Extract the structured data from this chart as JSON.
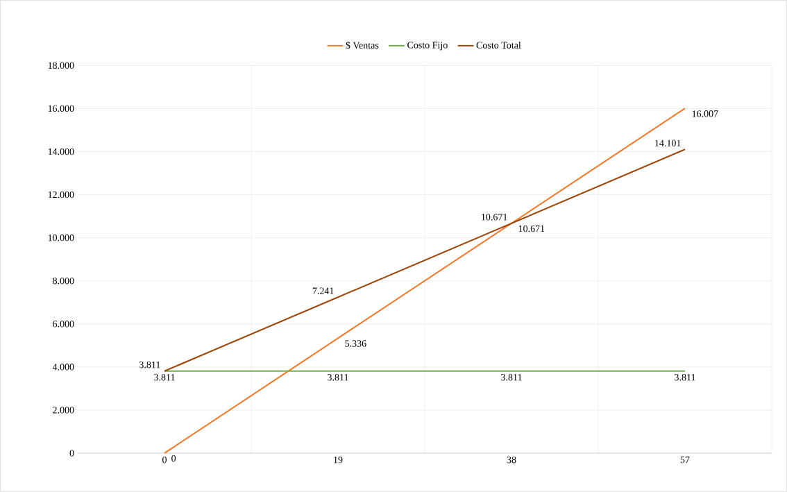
{
  "chart_data": {
    "type": "line",
    "categories": [
      "0",
      "19",
      "38",
      "57"
    ],
    "series": [
      {
        "name": "$ Ventas",
        "color": "#ed7d31",
        "values": [
          0,
          5336,
          10671,
          16007
        ],
        "value_labels": [
          "0",
          "5.336",
          "10.671",
          "16.007"
        ]
      },
      {
        "name": "Costo Fijo",
        "color": "#70ad47",
        "values": [
          3811,
          3811,
          3811,
          3811
        ],
        "value_labels": [
          "3.811",
          "3.811",
          "3.811",
          "3.811"
        ]
      },
      {
        "name": "Costo Total",
        "color": "#9e480e",
        "values": [
          3811,
          7241,
          10671,
          14101
        ],
        "value_labels": [
          "3.811",
          "7.241",
          "10.671",
          "14.101"
        ]
      }
    ],
    "ylim": [
      0,
      18000
    ],
    "yticks": [
      {
        "value": 0,
        "label": "0"
      },
      {
        "value": 2000,
        "label": "2.000"
      },
      {
        "value": 4000,
        "label": "4.000"
      },
      {
        "value": 6000,
        "label": "6.000"
      },
      {
        "value": 8000,
        "label": "8.000"
      },
      {
        "value": 10000,
        "label": "10.000"
      },
      {
        "value": 12000,
        "label": "12.000"
      },
      {
        "value": 14000,
        "label": "14.000"
      },
      {
        "value": 16000,
        "label": "16.000"
      },
      {
        "value": 18000,
        "label": "18.000"
      }
    ],
    "grid": true,
    "legend": "top",
    "marker": "none",
    "line_style": "solid"
  }
}
